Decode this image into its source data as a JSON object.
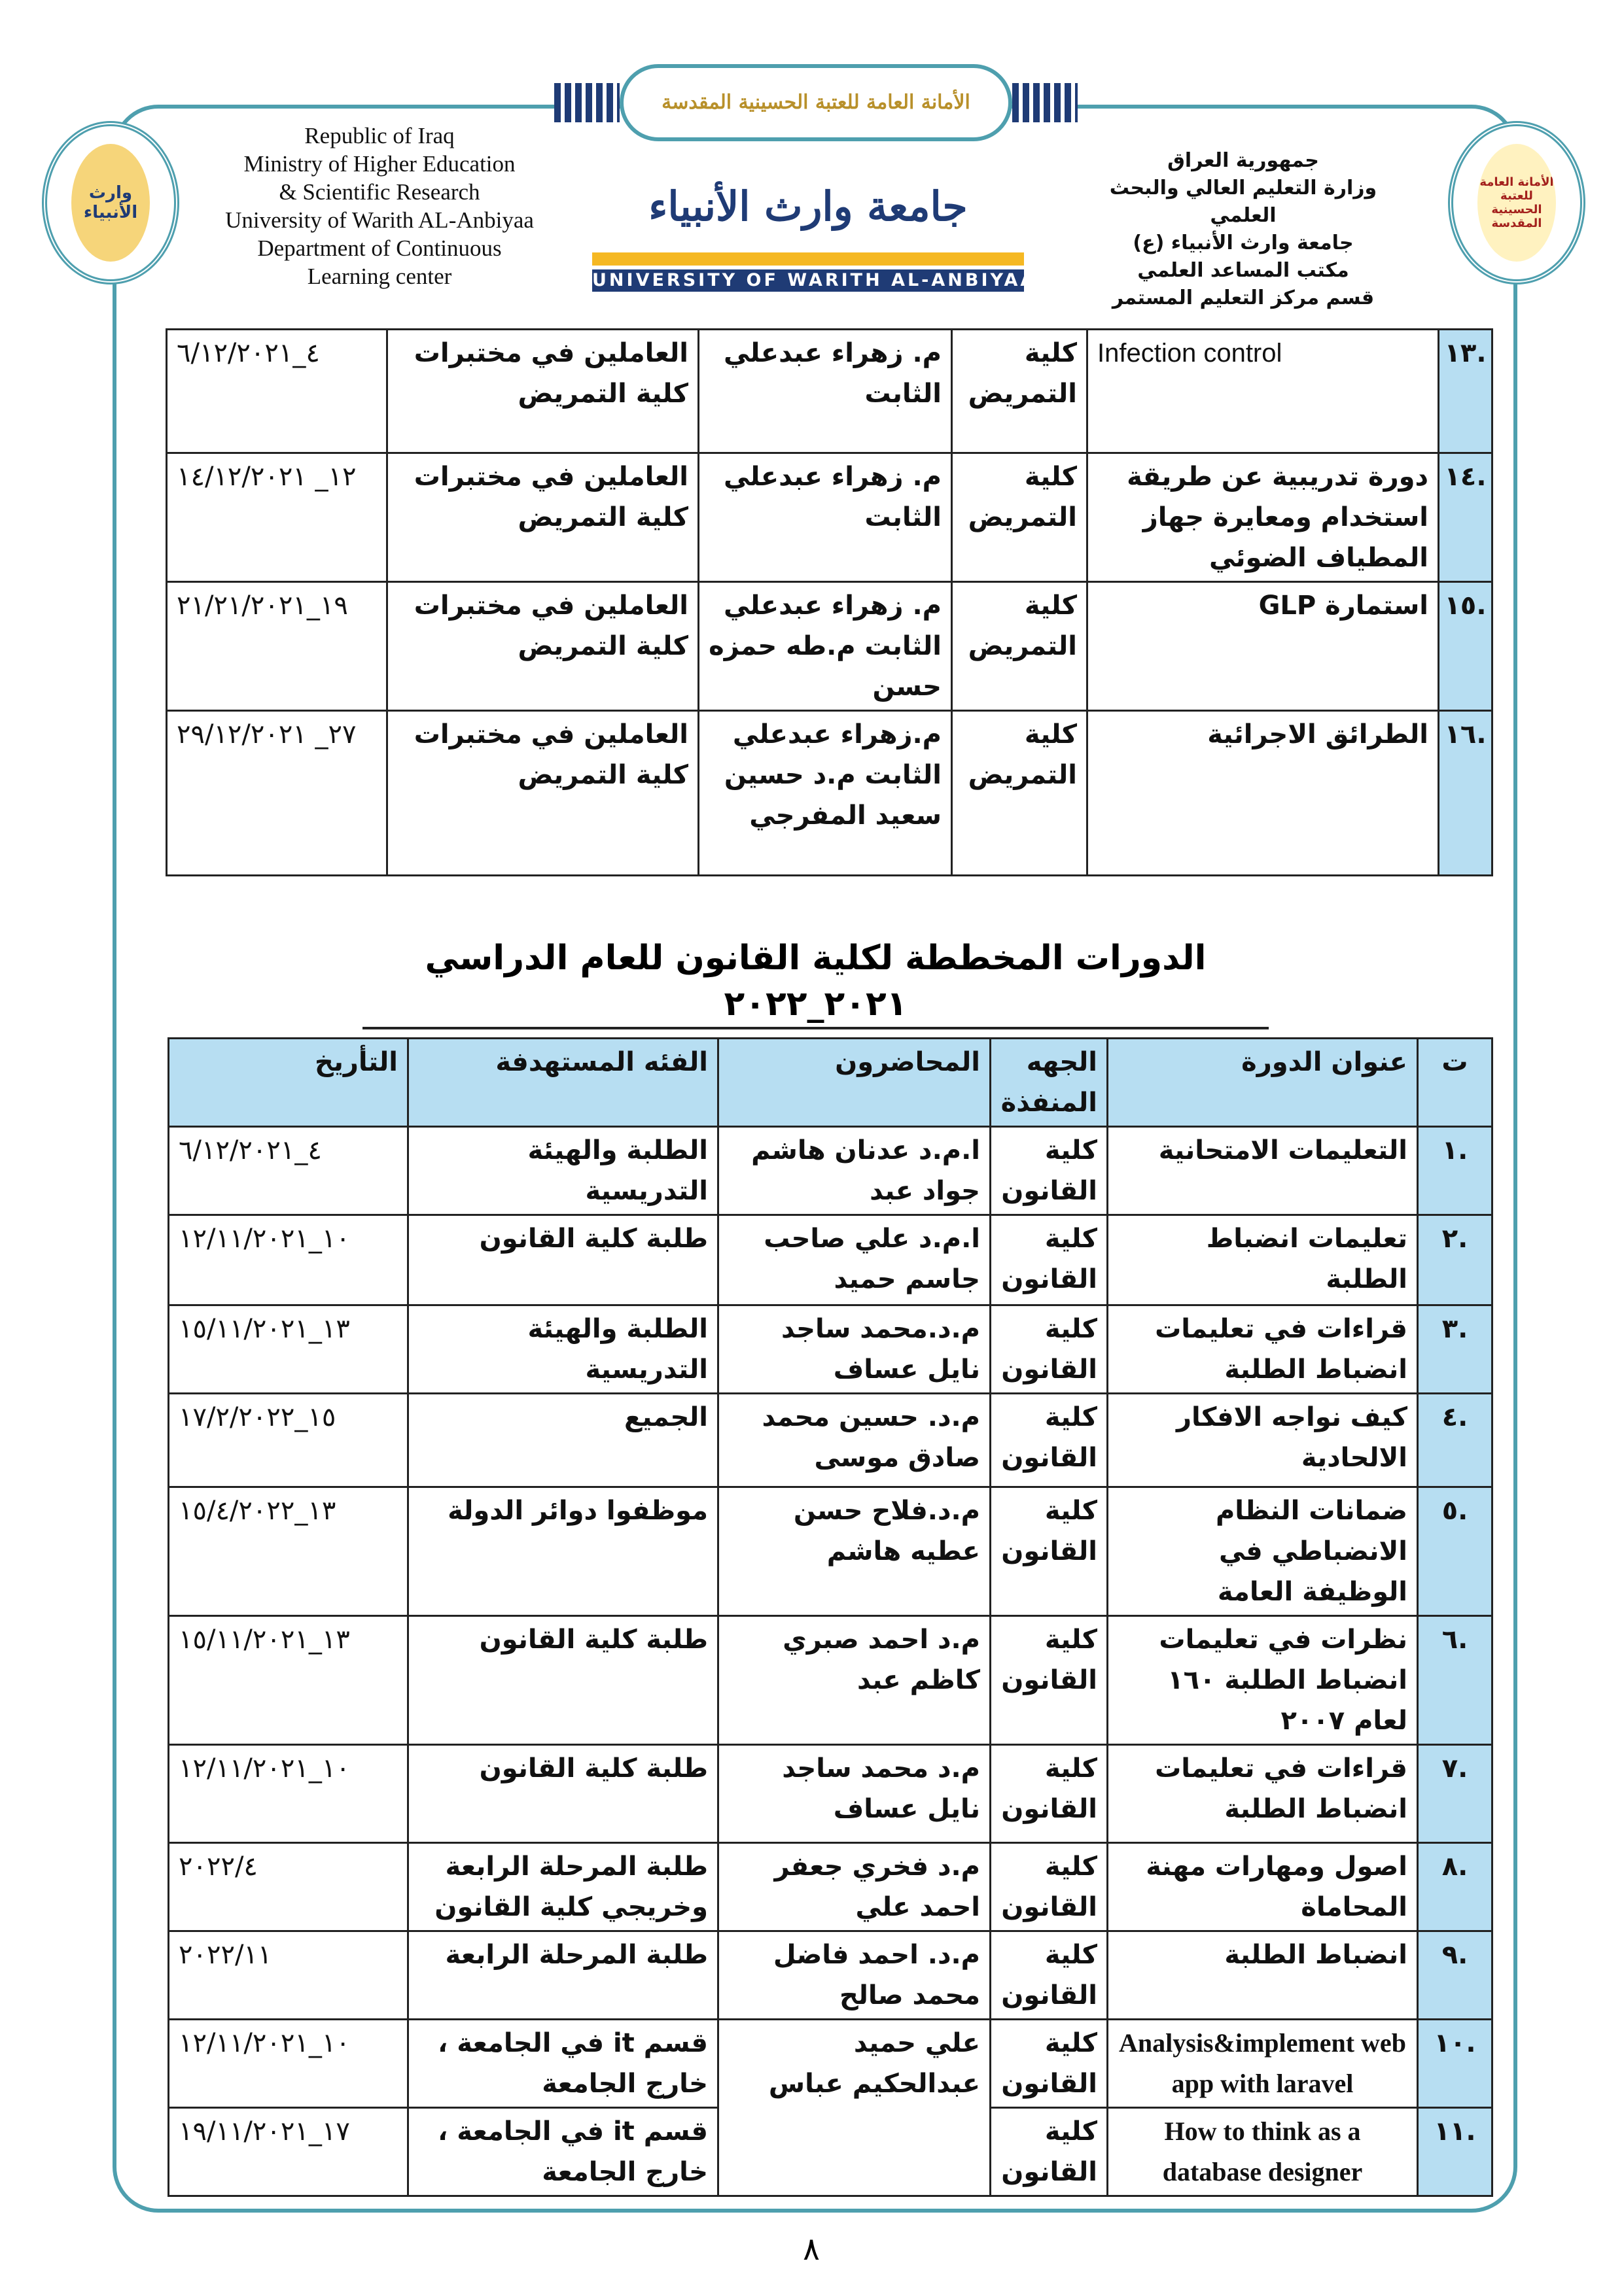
{
  "header": {
    "banner_text": "الأمانة العامة للعتبة الحسينية المقدسة",
    "left_logo_text": "وارث الأنبياء",
    "right_logo_text": "الأمانة العامة للعتبة الحسينية المقدسة",
    "english_lines": [
      "Republic of Iraq",
      "Ministry of  Higher Education",
      "& Scientific Research",
      "University of  Warith AL-Anbiyaa",
      "Department of Continuous",
      "Learning center"
    ],
    "arabic_lines": [
      "جمهورية العراق",
      "وزارة التعليم العالي والبحث العلمي",
      "جامعة وارث الأنبياء (ع)",
      "مكتب المساعد العلمي",
      "قسم مركز التعليم المستمر"
    ],
    "university_logo_ar": "جامعة وارث الأنبياء",
    "university_logo_en": "UNIVERSITY OF WARITH AL-ANBIYAA"
  },
  "table1": {
    "rows": [
      {
        "num": ".١٣",
        "title": "Infection control",
        "faculty": "كلية التمريض",
        "lecturers": "م. زهراء عبدعلي الثابت",
        "audience": "العاملين في مختبرات كلية التمريض",
        "date": "٤_٦/١٢/٢٠٢١"
      },
      {
        "num": ".١٤",
        "title": "دورة تدريبية عن طريقة استخدام ومعايرة جهاز المطياف الضوئي",
        "faculty": "كلية التمريض",
        "lecturers": "م. زهراء عبدعلي الثابت",
        "audience": "العاملين في مختبرات كلية التمريض",
        "date": "١٢_ ١٤/١٢/٢٠٢١"
      },
      {
        "num": ".١٥",
        "title": "استمارة GLP",
        "faculty": "كلية التمريض",
        "lecturers": "م. زهراء عبدعلي الثابت م.طه حمزه حسن",
        "audience": "العاملين في مختبرات كلية التمريض",
        "date": "١٩_٢١/٢١/٢٠٢١"
      },
      {
        "num": ".١٦",
        "title": "الطرائق الاجرائية",
        "faculty": "كلية التمريض",
        "lecturers": "م.زهراء عبدعلي الثابت م.د حسين سعيد المفرجي",
        "audience": "العاملين في مختبرات كلية التمريض",
        "date": "٢٧_ ٢٩/١٢/٢٠٢١"
      }
    ]
  },
  "table2": {
    "title": "الدورات المخططة لكلية القانون للعام الدراسي ٢٠٢١_٢٠٢٢",
    "headers": {
      "num": "ت",
      "title": "عنوان الدورة",
      "faculty": "الجهه المنفذة",
      "lecturers": "المحاضرون",
      "audience": "الفئه المستهدفة",
      "date": "التأريخ"
    },
    "rows": [
      {
        "num": ".١",
        "title": "التعليمات الامتحانية",
        "faculty": "كلية القانون",
        "lecturers": "ا.م.د عدنان هاشم جواد عبد",
        "audience": "الطلبة والهيئة التدريسية",
        "date": "٤_٦/١٢/٢٠٢١"
      },
      {
        "num": ".٢",
        "title": "تعليمات انضباط الطلبة",
        "faculty": "كلية القانون",
        "lecturers": "ا.م.د علي صاحب جاسم حميد",
        "audience": "طلبة كلية القانون",
        "date": "١٠_١٢/١١/٢٠٢١"
      },
      {
        "num": ".٣",
        "title": "قراءات في تعليمات انضباط الطلبة",
        "faculty": "كلية القانون",
        "lecturers": "م.د.محمد ساجد نايل عساف",
        "audience": "الطلبة والهيئة التدريسية",
        "date": "١٣_١٥/١١/٢٠٢١"
      },
      {
        "num": ".٤",
        "title": "كيف نواجه الافكار الالحادية",
        "faculty": "كلية القانون",
        "lecturers": "م.د. حسين محمد صادق موسى",
        "audience": "الجميع",
        "date": "١٥_١٧/٢/٢٠٢٢"
      },
      {
        "num": ".٥",
        "title": "ضمانات النظام الانضباطي في الوظيفة العامة",
        "faculty": "كلية القانون",
        "lecturers": "م.د.فلاح حسن عطيه هاشم",
        "audience": "موظفوا دوائر الدولة",
        "date": "١٣_١٥/٤/٢٠٢٢"
      },
      {
        "num": ".٦",
        "title": "نظرات في تعليمات انضباط الطلبة ١٦٠ لعام ٢٠٠٧",
        "faculty": "كلية القانون",
        "lecturers": "م.د احمد صبري كاظم عبد",
        "audience": "طلبة كلية القانون",
        "date": "١٣_١٥/١١/٢٠٢١"
      },
      {
        "num": ".٧",
        "title": "قراءات في تعليمات انضباط الطلبة",
        "faculty": "كلية القانون",
        "lecturers": "م.د محمد ساجد نايل عساف",
        "audience": "طلبة كلية القانون",
        "date": "١٠_١٢/١١/٢٠٢١"
      },
      {
        "num": ".٨",
        "title": "اصول ومهارات مهنة المحاماة",
        "faculty": "كلية القانون",
        "lecturers": "م.د فخري جعفر احمد علي",
        "audience": "طلبة المرحلة الرابعة وخريجي كلية القانون",
        "date": "٢٠٢٢/٤"
      },
      {
        "num": ".٩",
        "title": "انضباط الطلبة",
        "faculty": "كلية القانون",
        "lecturers": "م.د. احمد فاضل محمد صالح",
        "audience": "طلبة المرحلة الرابعة",
        "date": "٢٠٢٢/١١"
      },
      {
        "num": ".١٠",
        "title": "Analysis&implement web app with laravel",
        "faculty": "كلية القانون",
        "lecturers": "علي حميد عبدالحكيم عباس",
        "audience": "قسم it في الجامعة ، خارج الجامعة",
        "date": "١٠_١٢/١١/٢٠٢١"
      },
      {
        "num": ".١١",
        "title": "How to think as a database designer",
        "faculty": "كلية القانون",
        "audience": "قسم it في الجامعة ، خارج الجامعة",
        "date": "١٧_١٩/١١/٢٠٢١"
      }
    ]
  },
  "page_number": "٨"
}
